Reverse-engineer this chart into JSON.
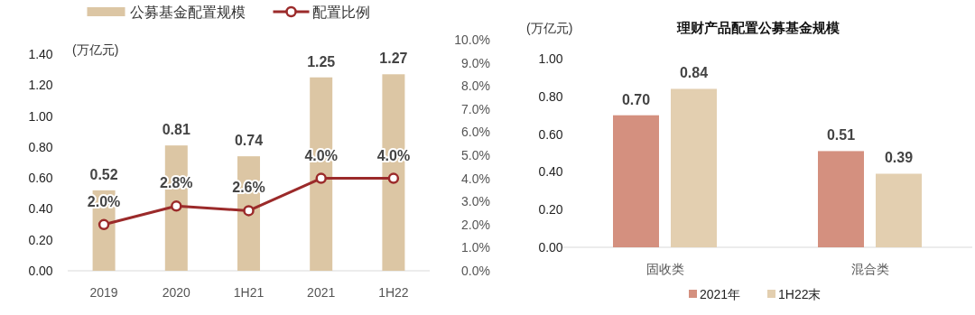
{
  "chart_data": [
    {
      "type": "bar",
      "ylabel": "(万亿元)",
      "categories": [
        "2019",
        "2020",
        "1H21",
        "2021",
        "1H22"
      ],
      "series": [
        {
          "name": "公募基金配置规模",
          "color": "#dcc6a4",
          "values": [
            0.52,
            0.81,
            0.74,
            1.25,
            1.27
          ],
          "value_labels": [
            "0.52",
            "0.81",
            "0.74",
            "1.25",
            "1.27"
          ]
        },
        {
          "name": "配置比例",
          "type": "line",
          "axis": "y2",
          "color": "#9b2a2a",
          "marker": "circle",
          "values": [
            2.0,
            2.8,
            2.6,
            4.0,
            4.0
          ],
          "value_labels": [
            "2.0%",
            "2.8%",
            "2.6%",
            "4.0%",
            "4.0%"
          ]
        }
      ],
      "ylim": [
        0,
        1.4
      ],
      "yticks": [
        {
          "value": 0,
          "label": "0.00"
        },
        {
          "value": 0.2,
          "label": "0.20"
        },
        {
          "value": 0.4,
          "label": "0.40"
        },
        {
          "value": 0.6,
          "label": "0.60"
        },
        {
          "value": 0.8,
          "label": "0.80"
        },
        {
          "value": 1.0,
          "label": "1.00"
        },
        {
          "value": 1.2,
          "label": "1.20"
        },
        {
          "value": 1.4,
          "label": "1.40"
        }
      ],
      "y2lim": [
        0,
        10
      ],
      "y2ticks": [
        {
          "value": 0,
          "label": "0.0%"
        },
        {
          "value": 1,
          "label": "1.0%"
        },
        {
          "value": 2,
          "label": "2.0%"
        },
        {
          "value": 3,
          "label": "3.0%"
        },
        {
          "value": 4,
          "label": "4.0%"
        },
        {
          "value": 5,
          "label": "5.0%"
        },
        {
          "value": 6,
          "label": "6.0%"
        },
        {
          "value": 7,
          "label": "7.0%"
        },
        {
          "value": 8,
          "label": "8.0%"
        },
        {
          "value": 9,
          "label": "9.0%"
        },
        {
          "value": 10,
          "label": "10.0%"
        }
      ],
      "legend": "top",
      "grid": false
    },
    {
      "type": "bar",
      "title": "理财产品配置公募基金规模",
      "ylabel": "(万亿元)",
      "categories": [
        "固收类",
        "混合类"
      ],
      "series": [
        {
          "name": "2021年",
          "color": "#d4907f",
          "values": [
            0.7,
            0.51
          ],
          "value_labels": [
            "0.70",
            "0.51"
          ]
        },
        {
          "name": "1H22末",
          "color": "#e3cfb0",
          "values": [
            0.84,
            0.39
          ],
          "value_labels": [
            "0.84",
            "0.39"
          ]
        }
      ],
      "ylim": [
        0,
        1.0
      ],
      "yticks": [
        {
          "value": 0,
          "label": "0.00"
        },
        {
          "value": 0.2,
          "label": "0.20"
        },
        {
          "value": 0.4,
          "label": "0.40"
        },
        {
          "value": 0.6,
          "label": "0.60"
        },
        {
          "value": 0.8,
          "label": "0.80"
        },
        {
          "value": 1.0,
          "label": "1.00"
        }
      ],
      "legend": "bottom",
      "grid": false
    }
  ]
}
